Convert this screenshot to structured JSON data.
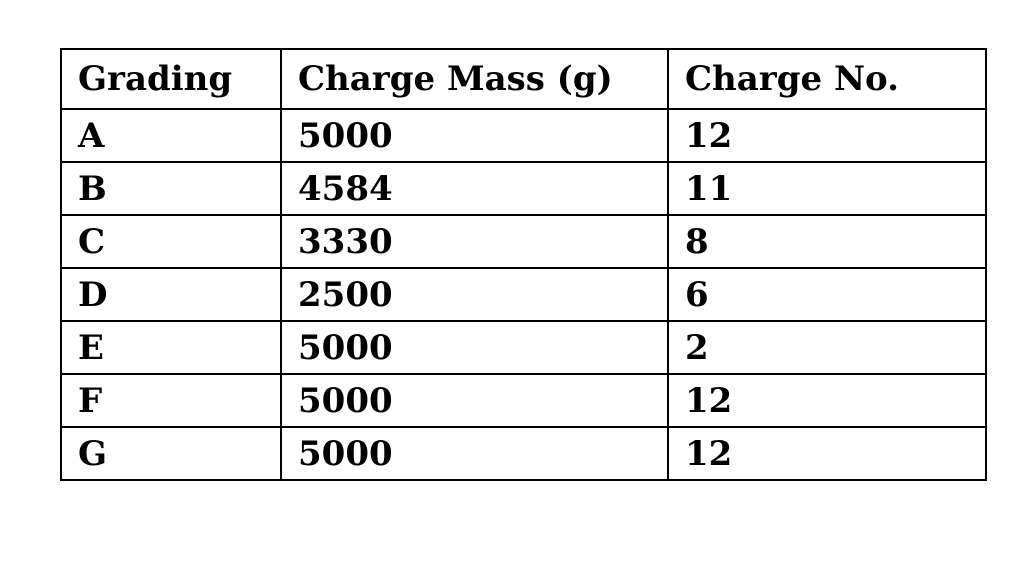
{
  "table": {
    "headers": [
      "Grading",
      "Charge Mass (g)",
      "Charge No."
    ],
    "rows": [
      [
        "A",
        "5000",
        "12"
      ],
      [
        "B",
        "4584",
        "11"
      ],
      [
        "C",
        "3330",
        "8"
      ],
      [
        "D",
        "2500",
        "6"
      ],
      [
        "E",
        "5000",
        "2"
      ],
      [
        "F",
        "5000",
        "12"
      ],
      [
        "G",
        "5000",
        "12"
      ]
    ]
  },
  "colors": {
    "text": "#000000",
    "border": "#000000",
    "background": "#ffffff"
  }
}
